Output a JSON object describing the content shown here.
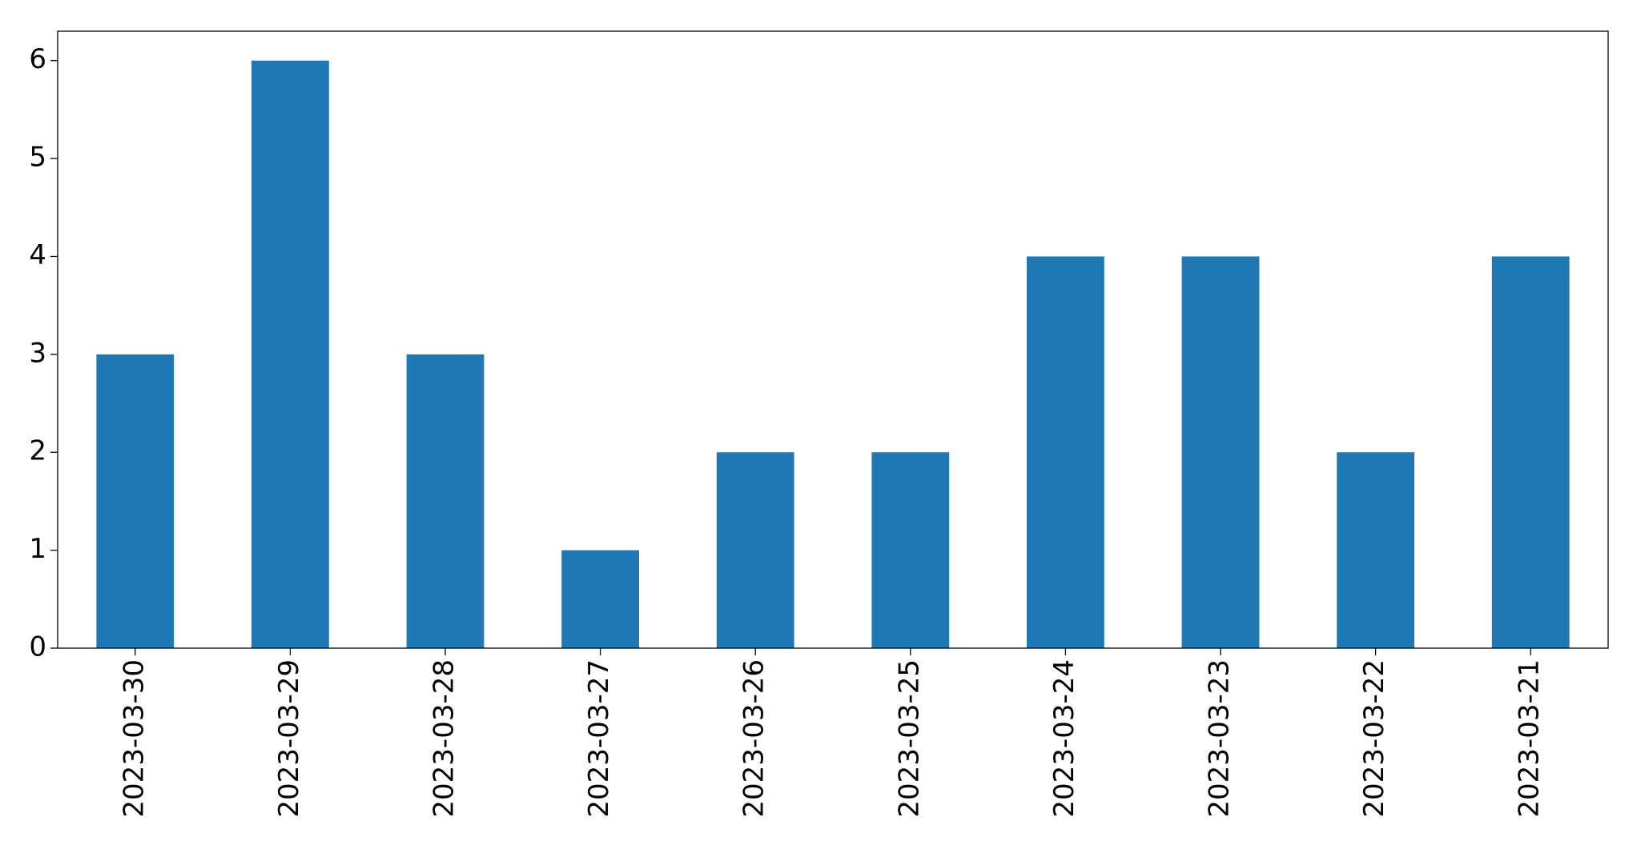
{
  "chart_data": {
    "type": "bar",
    "categories": [
      "2023-03-30",
      "2023-03-29",
      "2023-03-28",
      "2023-03-27",
      "2023-03-26",
      "2023-03-25",
      "2023-03-24",
      "2023-03-23",
      "2023-03-22",
      "2023-03-21"
    ],
    "values": [
      3,
      6,
      3,
      1,
      2,
      2,
      4,
      4,
      2,
      4
    ],
    "color": "#1f77b4",
    "ylim": [
      0,
      6.3
    ],
    "yticks": [
      0,
      1,
      2,
      3,
      4,
      5,
      6
    ],
    "grid": false
  }
}
